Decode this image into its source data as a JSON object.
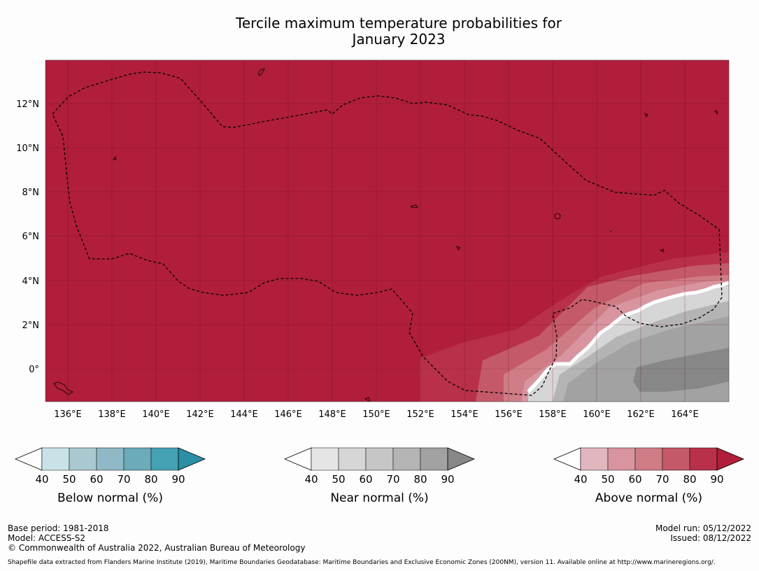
{
  "title_line1": "Tercile maximum temperature probabilities for",
  "title_line2": "January 2023",
  "lat_labels": [
    "12°N",
    "10°N",
    "8°N",
    "6°N",
    "4°N",
    "2°N",
    "0°"
  ],
  "lon_labels": [
    "136°E",
    "138°E",
    "140°E",
    "142°E",
    "144°E",
    "146°E",
    "148°E",
    "150°E",
    "152°E",
    "154°E",
    "156°E",
    "158°E",
    "160°E",
    "162°E",
    "164°E"
  ],
  "colorbars": [
    {
      "title": "Below normal (%)",
      "ticks": [
        "40",
        "50",
        "60",
        "70",
        "80",
        "90"
      ],
      "colors": [
        "#ffffff",
        "#c9e2e7",
        "#a9c9d0",
        "#8fb9c6",
        "#6cabb9",
        "#45a1b4",
        "#2b8fa5"
      ]
    },
    {
      "title": "Near normal (%)",
      "ticks": [
        "40",
        "50",
        "60",
        "70",
        "80",
        "90"
      ],
      "colors": [
        "#ffffff",
        "#e5e5e5",
        "#d6d6d6",
        "#c6c6c6",
        "#b4b4b4",
        "#a2a2a2",
        "#878787"
      ]
    },
    {
      "title": "Above normal (%)",
      "ticks": [
        "40",
        "50",
        "60",
        "70",
        "80",
        "90"
      ],
      "colors": [
        "#ffffff",
        "#e1b6bf",
        "#d8959f",
        "#cf7c86",
        "#c45a69",
        "#b8304a",
        "#b01e3b"
      ]
    }
  ],
  "colors": {
    "above_90": "#b01e3b",
    "above_80": "#b8304a",
    "above_70": "#c45a69",
    "above_60": "#cf7c86",
    "near_50": "#d6d6d6",
    "near_70": "#b4b4b4",
    "near_80": "#a2a2a2",
    "near_90": "#878787"
  },
  "footer": {
    "base_period": "Base period: 1981-2018",
    "model": "Model: ACCESS-S2",
    "copyright": "© Commonwealth of Australia 2022, Australian Bureau of Meteorology",
    "model_run": "Model run: 05/12/2022",
    "issued": "Issued: 08/12/2022",
    "shapefile": "Shapefile data extracted from Flanders Marine Institute (2019), Maritime Boundaries Geodatabase: Maritime Boundaries and Exclusive Economic Zones (200NM), version 11. Available online at http://www.marineregions.org/."
  }
}
